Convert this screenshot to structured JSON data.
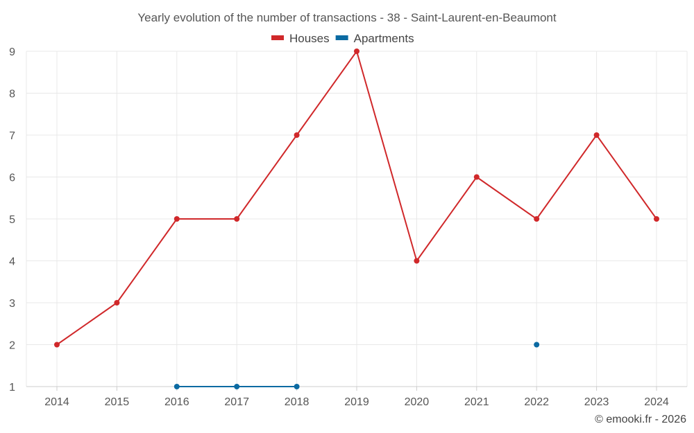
{
  "chart_data": {
    "type": "line",
    "title": "Yearly evolution of the number of transactions - 38 - Saint-Laurent-en-Beaumont",
    "xlabel": "",
    "ylabel": "",
    "categories": [
      "2014",
      "2015",
      "2016",
      "2017",
      "2018",
      "2019",
      "2020",
      "2021",
      "2022",
      "2023",
      "2024"
    ],
    "ylim": [
      1,
      9
    ],
    "yticks": [
      1,
      2,
      3,
      4,
      5,
      6,
      7,
      8,
      9
    ],
    "grid": true,
    "legend_position": "top-center",
    "series": [
      {
        "name": "Houses",
        "color": "#d0282a",
        "values": [
          2,
          3,
          5,
          5,
          7,
          9,
          4,
          6,
          5,
          7,
          5
        ]
      },
      {
        "name": "Apartments",
        "color": "#0b6aa2",
        "values": [
          null,
          null,
          1,
          1,
          1,
          null,
          null,
          null,
          2,
          null,
          null
        ]
      }
    ]
  },
  "footer": {
    "copyright": "© emooki.fr - 2026"
  }
}
